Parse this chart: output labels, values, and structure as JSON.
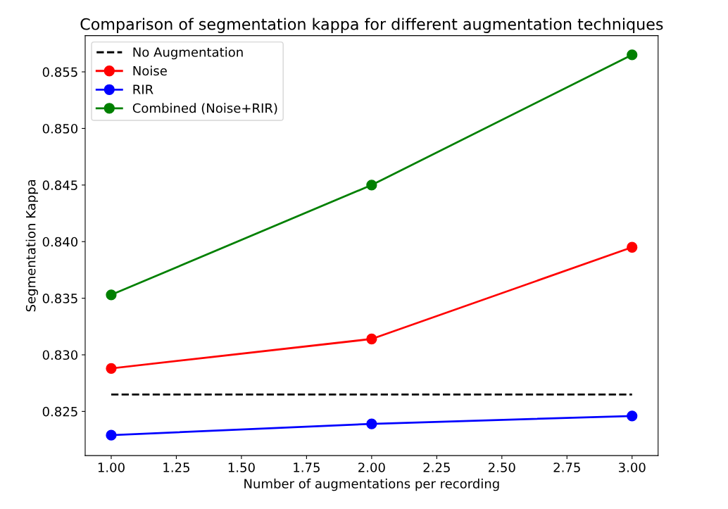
{
  "chart_data": {
    "type": "line",
    "title": "Comparison of segmentation kappa for different augmentation techniques",
    "xlabel": "Number of augmentations per recording",
    "ylabel": "Segmentation Kappa",
    "x": [
      1,
      2,
      3
    ],
    "series": [
      {
        "name": "No Augmentation",
        "color": "#000000",
        "x": [
          1,
          3
        ],
        "values": [
          0.8265,
          0.8265
        ],
        "line_style": "dashed",
        "marker": "none"
      },
      {
        "name": "Noise",
        "color": "#ff0000",
        "values": [
          0.8288,
          0.8314,
          0.8395
        ],
        "marker": "circle"
      },
      {
        "name": "RIR",
        "color": "#0000ff",
        "values": [
          0.8229,
          0.8239,
          0.8246
        ],
        "marker": "circle"
      },
      {
        "name": "Combined (Noise+RIR)",
        "color": "#008000",
        "values": [
          0.8353,
          0.845,
          0.8565
        ],
        "marker": "circle"
      }
    ],
    "xlim": [
      0.9,
      3.1
    ],
    "ylim": [
      0.8211,
      0.8582
    ],
    "xticks": [
      {
        "value": 1,
        "label": "1.00"
      },
      {
        "value": 1.25,
        "label": "1.25"
      },
      {
        "value": 1.5,
        "label": "1.50"
      },
      {
        "value": 1.75,
        "label": "1.75"
      },
      {
        "value": 2,
        "label": "2.00"
      },
      {
        "value": 2.25,
        "label": "2.25"
      },
      {
        "value": 2.5,
        "label": "2.50"
      },
      {
        "value": 2.75,
        "label": "2.75"
      },
      {
        "value": 3,
        "label": "3.00"
      }
    ],
    "yticks": [
      {
        "value": 0.825,
        "label": "0.825"
      },
      {
        "value": 0.83,
        "label": "0.830"
      },
      {
        "value": 0.835,
        "label": "0.835"
      },
      {
        "value": 0.84,
        "label": "0.840"
      },
      {
        "value": 0.845,
        "label": "0.845"
      },
      {
        "value": 0.85,
        "label": "0.850"
      },
      {
        "value": 0.855,
        "label": "0.855"
      }
    ],
    "grid": false,
    "legend": "top left"
  }
}
